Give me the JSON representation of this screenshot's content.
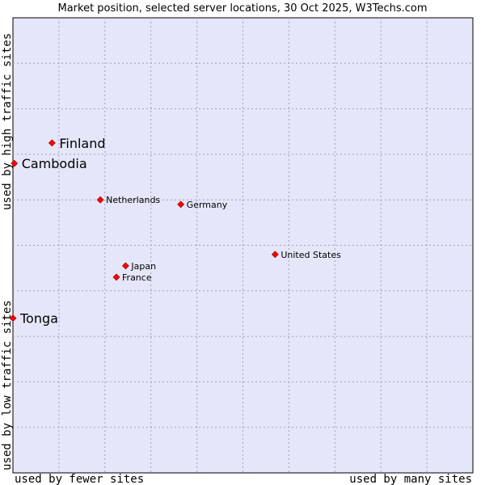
{
  "chart_data": {
    "type": "scatter",
    "title": "Market position, selected server locations, 30 Oct 2025, W3Techs.com",
    "xlabel_left": "used by fewer sites",
    "xlabel_right": "used by many sites",
    "ylabel_bottom": "used by low traffic sites",
    "ylabel_top": "used by high traffic sites",
    "xlim": [
      0,
      100
    ],
    "ylim": [
      0,
      100
    ],
    "grid": true,
    "points": [
      {
        "label": "Finland",
        "x": 8.5,
        "y": 72.5,
        "size": "large"
      },
      {
        "label": "Cambodia",
        "x": 0.3,
        "y": 68.0,
        "size": "large"
      },
      {
        "label": "Netherlands",
        "x": 19.0,
        "y": 60.0,
        "size": "small"
      },
      {
        "label": "Germany",
        "x": 36.5,
        "y": 59.0,
        "size": "small"
      },
      {
        "label": "United States",
        "x": 57.0,
        "y": 48.0,
        "size": "small"
      },
      {
        "label": "Japan",
        "x": 24.5,
        "y": 45.5,
        "size": "small"
      },
      {
        "label": "France",
        "x": 22.5,
        "y": 43.0,
        "size": "small"
      },
      {
        "label": "Tonga",
        "x": 0.0,
        "y": 34.0,
        "size": "large"
      }
    ],
    "colors": {
      "plot_bg": "#e6e6fa",
      "grid": "#a0a0b4",
      "marker": "#ff0000",
      "marker_stroke": "#8b0000"
    }
  }
}
